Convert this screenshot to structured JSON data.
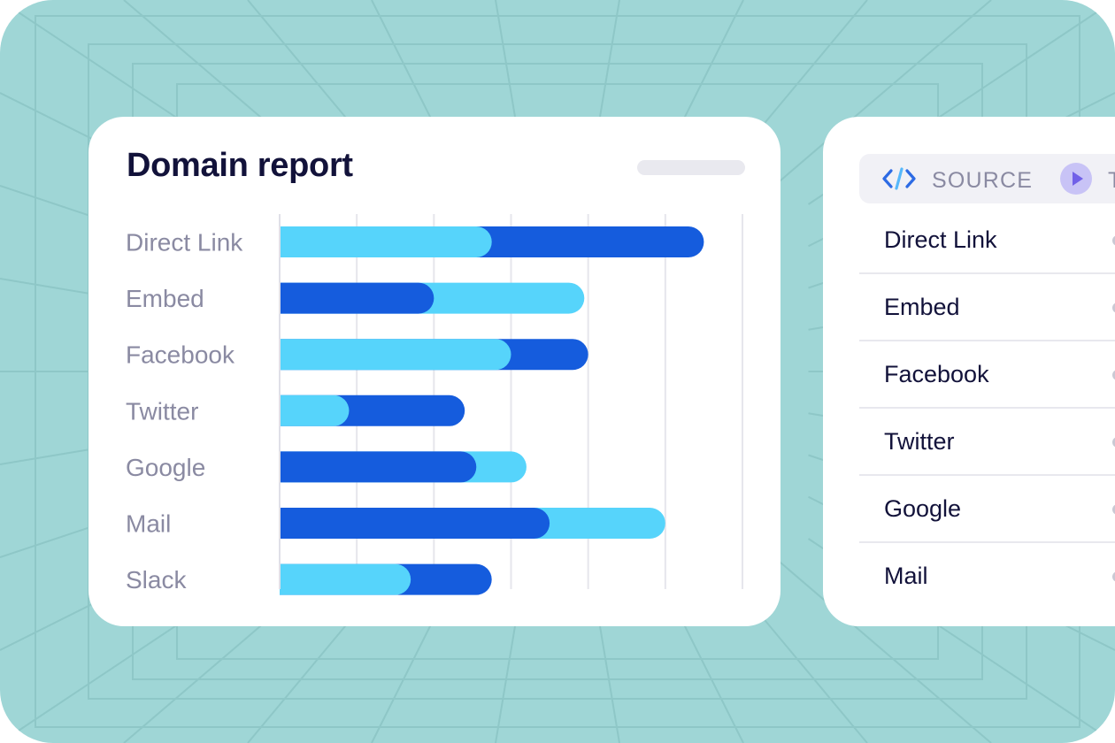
{
  "report": {
    "title": "Domain report"
  },
  "chart_data": {
    "type": "bar",
    "orientation": "horizontal",
    "stacked": true,
    "categories": [
      "Direct Link",
      "Embed",
      "Facebook",
      "Twitter",
      "Google",
      "Mail",
      "Slack"
    ],
    "series": [
      {
        "color": "#56d4fb",
        "values": [
          55,
          39,
          60,
          18,
          13,
          30,
          34
        ]
      },
      {
        "color": "#155cdd",
        "values": [
          55,
          40,
          20,
          30,
          51,
          70,
          21
        ]
      }
    ],
    "segment_order": [
      [
        "light",
        "dark"
      ],
      [
        "dark",
        "light"
      ],
      [
        "light",
        "dark"
      ],
      [
        "light",
        "dark"
      ],
      [
        "dark",
        "light"
      ],
      [
        "dark",
        "light"
      ],
      [
        "light",
        "dark"
      ]
    ],
    "xlim": [
      0,
      120
    ],
    "grid": true,
    "gridline_count": 6,
    "title": "Domain report",
    "xlabel": "",
    "ylabel": ""
  },
  "source_panel": {
    "header_label": "SOURCE",
    "truncated_label": "T",
    "rows": [
      "Direct Link",
      "Embed",
      "Facebook",
      "Twitter",
      "Google",
      "Mail"
    ]
  },
  "colors": {
    "background": "#9fd6d6",
    "grid_line": "#8ec7c7",
    "card": "#ffffff",
    "title_text": "#12123a",
    "category_text": "#8a8aa2",
    "bar_light": "#56d4fb",
    "bar_dark": "#155cdd",
    "code_icon": "#2d6be4",
    "play_circle": "#c8c3f6",
    "play_triangle": "#7160e8"
  },
  "icons": {
    "code": "code-brackets-icon",
    "play": "play-circle-icon"
  }
}
